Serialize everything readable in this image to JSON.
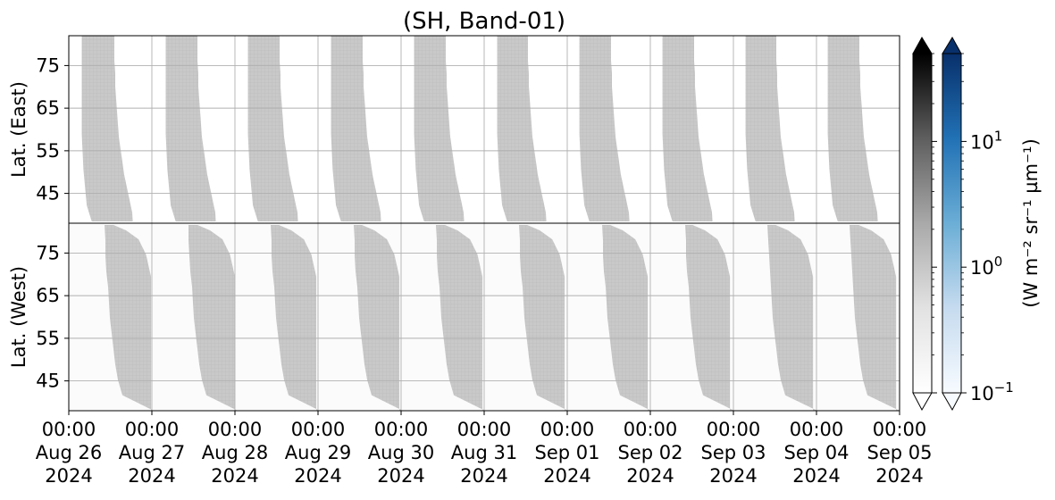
{
  "chart_data": {
    "type": "heatmap",
    "title": "(SH, Band-01)",
    "panels": [
      {
        "name": "east",
        "ylabel": "Lat. (East)",
        "yticks": [
          45,
          55,
          65,
          75
        ],
        "ylim": [
          38,
          82
        ],
        "y_inverted": false
      },
      {
        "name": "west",
        "ylabel": "Lat. (West)",
        "yticks": [
          75,
          65,
          55,
          45
        ],
        "ylim": [
          82,
          38
        ],
        "y_inverted": true
      }
    ],
    "x_ticks": [
      {
        "time": "00:00",
        "date": "Aug 26",
        "year": "2024"
      },
      {
        "time": "00:00",
        "date": "Aug 27",
        "year": "2024"
      },
      {
        "time": "00:00",
        "date": "Aug 28",
        "year": "2024"
      },
      {
        "time": "00:00",
        "date": "Aug 29",
        "year": "2024"
      },
      {
        "time": "00:00",
        "date": "Aug 30",
        "year": "2024"
      },
      {
        "time": "00:00",
        "date": "Aug 31",
        "year": "2024"
      },
      {
        "time": "00:00",
        "date": "Sep 01",
        "year": "2024"
      },
      {
        "time": "00:00",
        "date": "Sep 02",
        "year": "2024"
      },
      {
        "time": "00:00",
        "date": "Sep 03",
        "year": "2024"
      },
      {
        "time": "00:00",
        "date": "Sep 04",
        "year": "2024"
      },
      {
        "time": "00:00",
        "date": "Sep 05",
        "year": "2024"
      }
    ],
    "xlim": [
      "2024-08-26 00:00",
      "2024-09-05 00:00"
    ],
    "grid": true,
    "colorbars": [
      {
        "cmap": "Greys",
        "extend": "both"
      },
      {
        "cmap": "Blues",
        "extend": "both"
      }
    ],
    "colorbar_scale": "log",
    "colorbar_ticks": [
      {
        "base": "10",
        "exp": "1"
      },
      {
        "base": "10",
        "exp": "0"
      },
      {
        "base": "10",
        "exp": "−1"
      }
    ],
    "colorbar_label": "(W m⁻² sr⁻¹ µm⁻¹)",
    "colorbar_range": [
      0.1,
      50
    ],
    "fill_value_approx": 0.7,
    "east_bands": [
      {
        "start": "Aug 26 03:45",
        "end": "Aug 26 14:15"
      },
      {
        "start": "Aug 27 04:00",
        "end": "Aug 27 14:15"
      },
      {
        "start": "Aug 28 03:45",
        "end": "Aug 28 14:00"
      },
      {
        "start": "Aug 29 03:45",
        "end": "Aug 29 14:00"
      },
      {
        "start": "Aug 30 03:45",
        "end": "Aug 30 14:00"
      },
      {
        "start": "Aug 31 03:45",
        "end": "Aug 31 13:45"
      },
      {
        "start": "Sep 01 03:30",
        "end": "Sep 01 13:45"
      },
      {
        "start": "Sep 02 03:30",
        "end": "Sep 02 13:45"
      },
      {
        "start": "Sep 03 03:30",
        "end": "Sep 03 13:30"
      },
      {
        "start": "Sep 04 03:15",
        "end": "Sep 04 13:30"
      }
    ],
    "west_bands": [
      {
        "start": "Aug 26 09:45",
        "end": "Aug 26 23:45"
      },
      {
        "start": "Aug 27 10:00",
        "end": "Aug 28 00:00"
      },
      {
        "start": "Aug 28 09:45",
        "end": "Aug 28 23:30"
      },
      {
        "start": "Aug 29 09:45",
        "end": "Aug 29 23:30"
      },
      {
        "start": "Aug 30 09:30",
        "end": "Aug 30 23:30"
      },
      {
        "start": "Aug 31 09:30",
        "end": "Aug 31 23:15"
      },
      {
        "start": "Sep 01 09:30",
        "end": "Sep 01 23:15"
      },
      {
        "start": "Sep 02 09:30",
        "end": "Sep 02 23:00"
      },
      {
        "start": "Sep 03 09:15",
        "end": "Sep 03 23:00"
      },
      {
        "start": "Sep 04 09:00",
        "end": "Sep 04 23:00"
      }
    ]
  },
  "colors": {
    "fill": "#c9c9c9",
    "grid": "#b0b0b0",
    "axis": "#000000"
  }
}
